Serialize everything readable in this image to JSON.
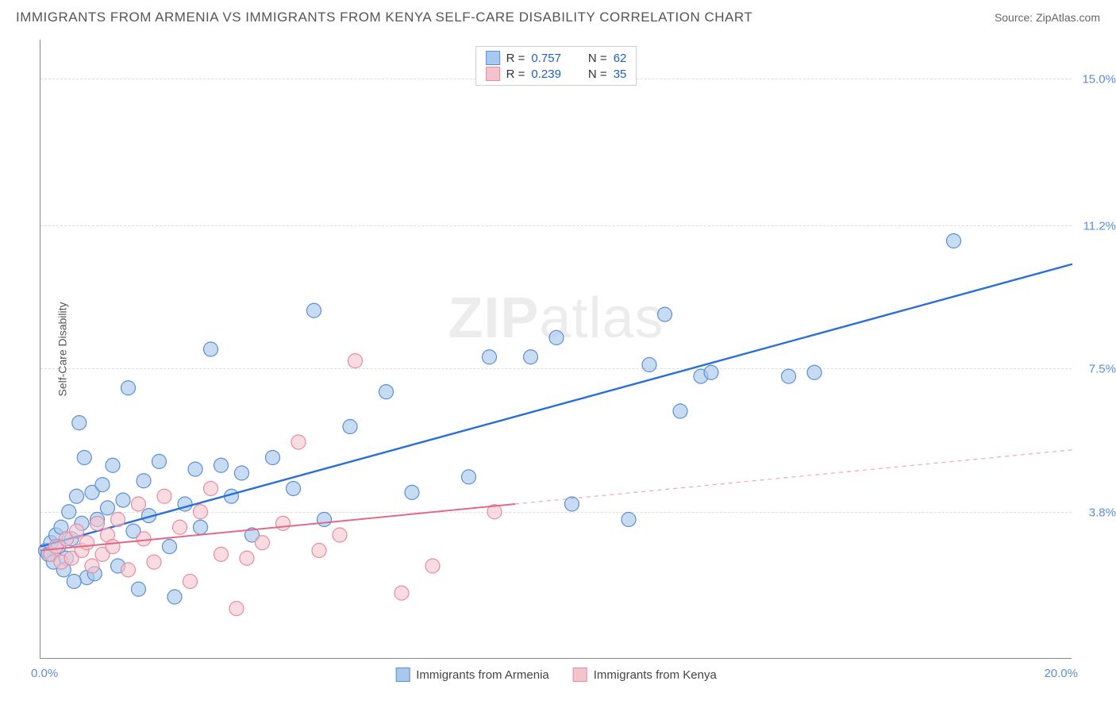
{
  "title": "IMMIGRANTS FROM ARMENIA VS IMMIGRANTS FROM KENYA SELF-CARE DISABILITY CORRELATION CHART",
  "source": "Source: ZipAtlas.com",
  "watermark_a": "ZIP",
  "watermark_b": "atlas",
  "chart": {
    "type": "scatter",
    "y_axis_title": "Self-Care Disability",
    "xlim": [
      0,
      20
    ],
    "ylim": [
      0,
      16
    ],
    "x_origin_label": "0.0%",
    "x_max_label": "20.0%",
    "y_ticks": [
      {
        "v": 3.8,
        "label": "3.8%"
      },
      {
        "v": 7.5,
        "label": "7.5%"
      },
      {
        "v": 11.2,
        "label": "11.2%"
      },
      {
        "v": 15.0,
        "label": "15.0%"
      }
    ],
    "grid_color": "#dddddd",
    "background_color": "#ffffff",
    "series": [
      {
        "name": "Immigrants from Armenia",
        "color_fill": "#a9c8ed",
        "color_stroke": "#5a8fd6",
        "line_color": "#2a6fd6",
        "line_width": 2.4,
        "marker_radius": 9,
        "marker_opacity": 0.65,
        "R_label": "R =",
        "R": "0.757",
        "N_label": "N =",
        "N": "62",
        "trend": {
          "x1": 0,
          "y1": 2.9,
          "x2": 20,
          "y2": 10.2,
          "dashed": false,
          "extrapolate_from_x": 0
        },
        "points": [
          [
            0.1,
            2.8
          ],
          [
            0.15,
            2.7
          ],
          [
            0.2,
            3.0
          ],
          [
            0.25,
            2.5
          ],
          [
            0.3,
            3.2
          ],
          [
            0.35,
            2.9
          ],
          [
            0.4,
            3.4
          ],
          [
            0.5,
            2.6
          ],
          [
            0.55,
            3.8
          ],
          [
            0.6,
            3.1
          ],
          [
            0.7,
            4.2
          ],
          [
            0.75,
            6.1
          ],
          [
            0.8,
            3.5
          ],
          [
            0.9,
            2.1
          ],
          [
            1.0,
            4.3
          ],
          [
            1.1,
            3.6
          ],
          [
            1.2,
            4.5
          ],
          [
            1.3,
            3.9
          ],
          [
            1.4,
            5.0
          ],
          [
            1.5,
            2.4
          ],
          [
            1.6,
            4.1
          ],
          [
            1.7,
            7.0
          ],
          [
            1.8,
            3.3
          ],
          [
            1.9,
            1.8
          ],
          [
            2.0,
            4.6
          ],
          [
            2.1,
            3.7
          ],
          [
            2.3,
            5.1
          ],
          [
            2.5,
            2.9
          ],
          [
            2.6,
            1.6
          ],
          [
            2.8,
            4.0
          ],
          [
            3.0,
            4.9
          ],
          [
            3.1,
            3.4
          ],
          [
            3.3,
            8.0
          ],
          [
            3.5,
            5.0
          ],
          [
            3.7,
            4.2
          ],
          [
            3.9,
            4.8
          ],
          [
            4.1,
            3.2
          ],
          [
            4.5,
            5.2
          ],
          [
            4.9,
            4.4
          ],
          [
            5.3,
            9.0
          ],
          [
            5.5,
            3.6
          ],
          [
            6.0,
            6.0
          ],
          [
            6.7,
            6.9
          ],
          [
            7.2,
            4.3
          ],
          [
            8.3,
            4.7
          ],
          [
            8.7,
            7.8
          ],
          [
            9.5,
            7.8
          ],
          [
            10.0,
            8.3
          ],
          [
            10.3,
            4.0
          ],
          [
            11.4,
            3.6
          ],
          [
            11.8,
            7.6
          ],
          [
            12.1,
            8.9
          ],
          [
            12.4,
            6.4
          ],
          [
            12.8,
            7.3
          ],
          [
            13.0,
            7.4
          ],
          [
            14.5,
            7.3
          ],
          [
            15.0,
            7.4
          ],
          [
            17.7,
            10.8
          ],
          [
            0.45,
            2.3
          ],
          [
            0.65,
            2.0
          ],
          [
            0.85,
            5.2
          ],
          [
            1.05,
            2.2
          ]
        ]
      },
      {
        "name": "Immigrants from Kenya",
        "color_fill": "#f4c4cd",
        "color_stroke": "#e88aa0",
        "line_color": "#e06a87",
        "line_width": 2.0,
        "marker_radius": 9,
        "marker_opacity": 0.6,
        "R_label": "R =",
        "R": "0.239",
        "N_label": "N =",
        "N": "35",
        "trend": {
          "x1": 0,
          "y1": 2.8,
          "x2": 9.2,
          "y2": 4.0,
          "dashed": false,
          "extrapolate_to_x": 20,
          "extrapolate_y2": 5.4
        },
        "points": [
          [
            0.2,
            2.7
          ],
          [
            0.3,
            2.9
          ],
          [
            0.4,
            2.5
          ],
          [
            0.5,
            3.1
          ],
          [
            0.6,
            2.6
          ],
          [
            0.7,
            3.3
          ],
          [
            0.8,
            2.8
          ],
          [
            0.9,
            3.0
          ],
          [
            1.0,
            2.4
          ],
          [
            1.1,
            3.5
          ],
          [
            1.2,
            2.7
          ],
          [
            1.3,
            3.2
          ],
          [
            1.4,
            2.9
          ],
          [
            1.5,
            3.6
          ],
          [
            1.7,
            2.3
          ],
          [
            1.9,
            4.0
          ],
          [
            2.0,
            3.1
          ],
          [
            2.2,
            2.5
          ],
          [
            2.4,
            4.2
          ],
          [
            2.7,
            3.4
          ],
          [
            2.9,
            2.0
          ],
          [
            3.1,
            3.8
          ],
          [
            3.3,
            4.4
          ],
          [
            3.5,
            2.7
          ],
          [
            3.8,
            1.3
          ],
          [
            4.0,
            2.6
          ],
          [
            4.3,
            3.0
          ],
          [
            4.7,
            3.5
          ],
          [
            5.0,
            5.6
          ],
          [
            5.4,
            2.8
          ],
          [
            5.8,
            3.2
          ],
          [
            6.1,
            7.7
          ],
          [
            7.0,
            1.7
          ],
          [
            7.6,
            2.4
          ],
          [
            8.8,
            3.8
          ]
        ]
      }
    ]
  },
  "legend_bottom": [
    {
      "label": "Immigrants from Armenia",
      "fill": "#a9c8ed",
      "stroke": "#5a8fd6"
    },
    {
      "label": "Immigrants from Kenya",
      "fill": "#f4c4cd",
      "stroke": "#e88aa0"
    }
  ]
}
